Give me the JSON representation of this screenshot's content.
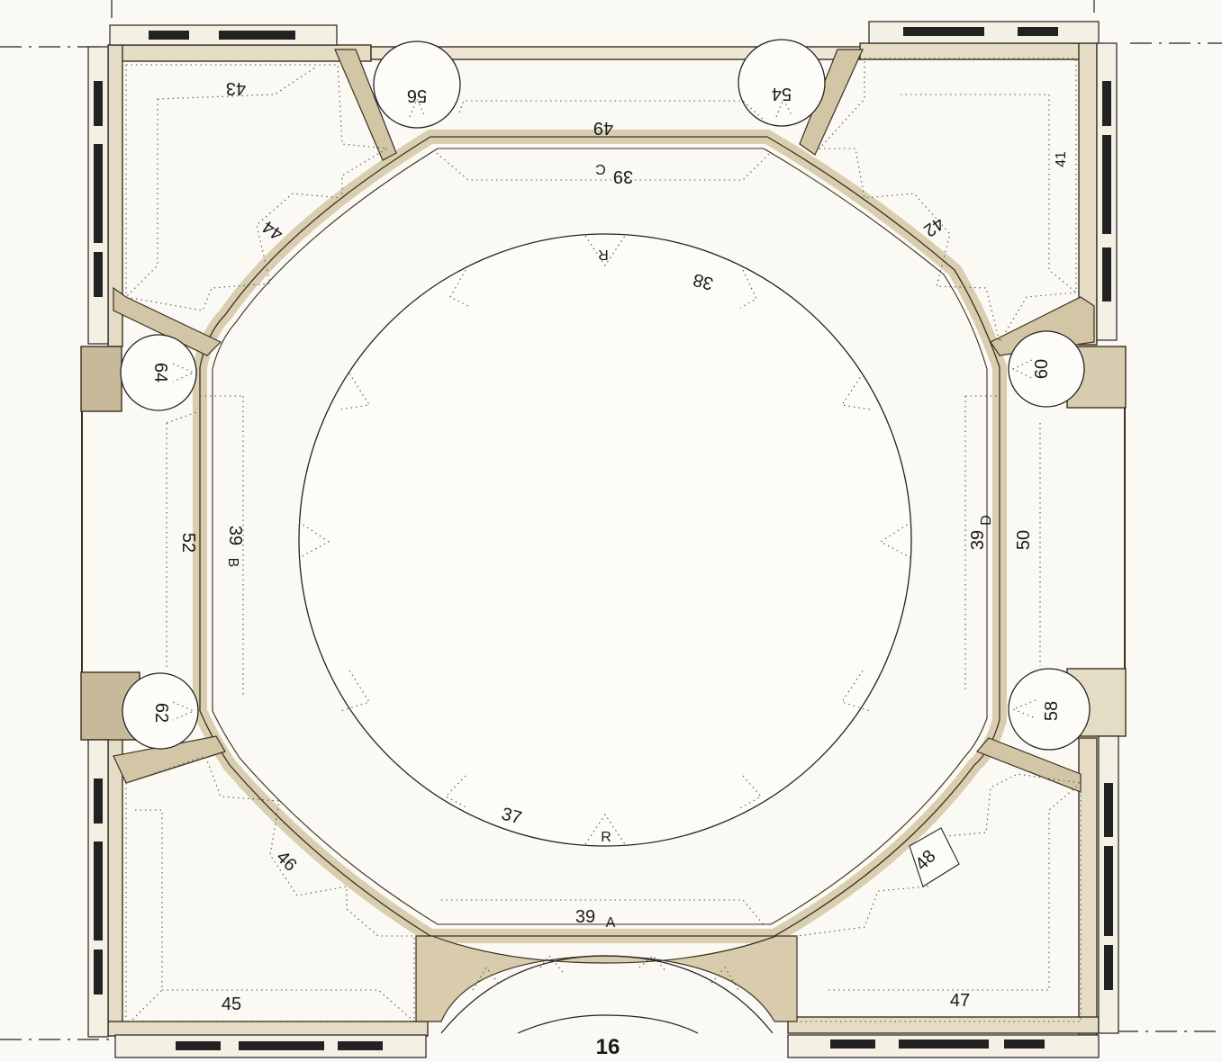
{
  "page": {
    "number": "16"
  },
  "colors": {
    "paper": "#fbf9f4",
    "wall_fill": "#e4dcc4",
    "wall_shade": "#c7b99a",
    "outline": "#3a3020",
    "dotted": "#555555",
    "text": "#1a1a1a"
  },
  "labels": {
    "l43": "43",
    "l56": "56",
    "l54": "54",
    "l49": "49",
    "l39c": "39",
    "l39c_letter": "C",
    "l41": "41",
    "l44": "44",
    "l42": "42",
    "lR_top": "R",
    "l38": "38",
    "l64": "64",
    "l60": "60",
    "l52": "52",
    "l39b": "39",
    "l39b_letter": "B",
    "l39d": "39",
    "l39d_letter": "D",
    "l50": "50",
    "l62": "62",
    "l58": "58",
    "l37": "37",
    "lR_bottom": "R",
    "l46": "46",
    "l48": "48",
    "l39a": "39",
    "l39a_letter": "A",
    "l45": "45",
    "l47": "47"
  }
}
